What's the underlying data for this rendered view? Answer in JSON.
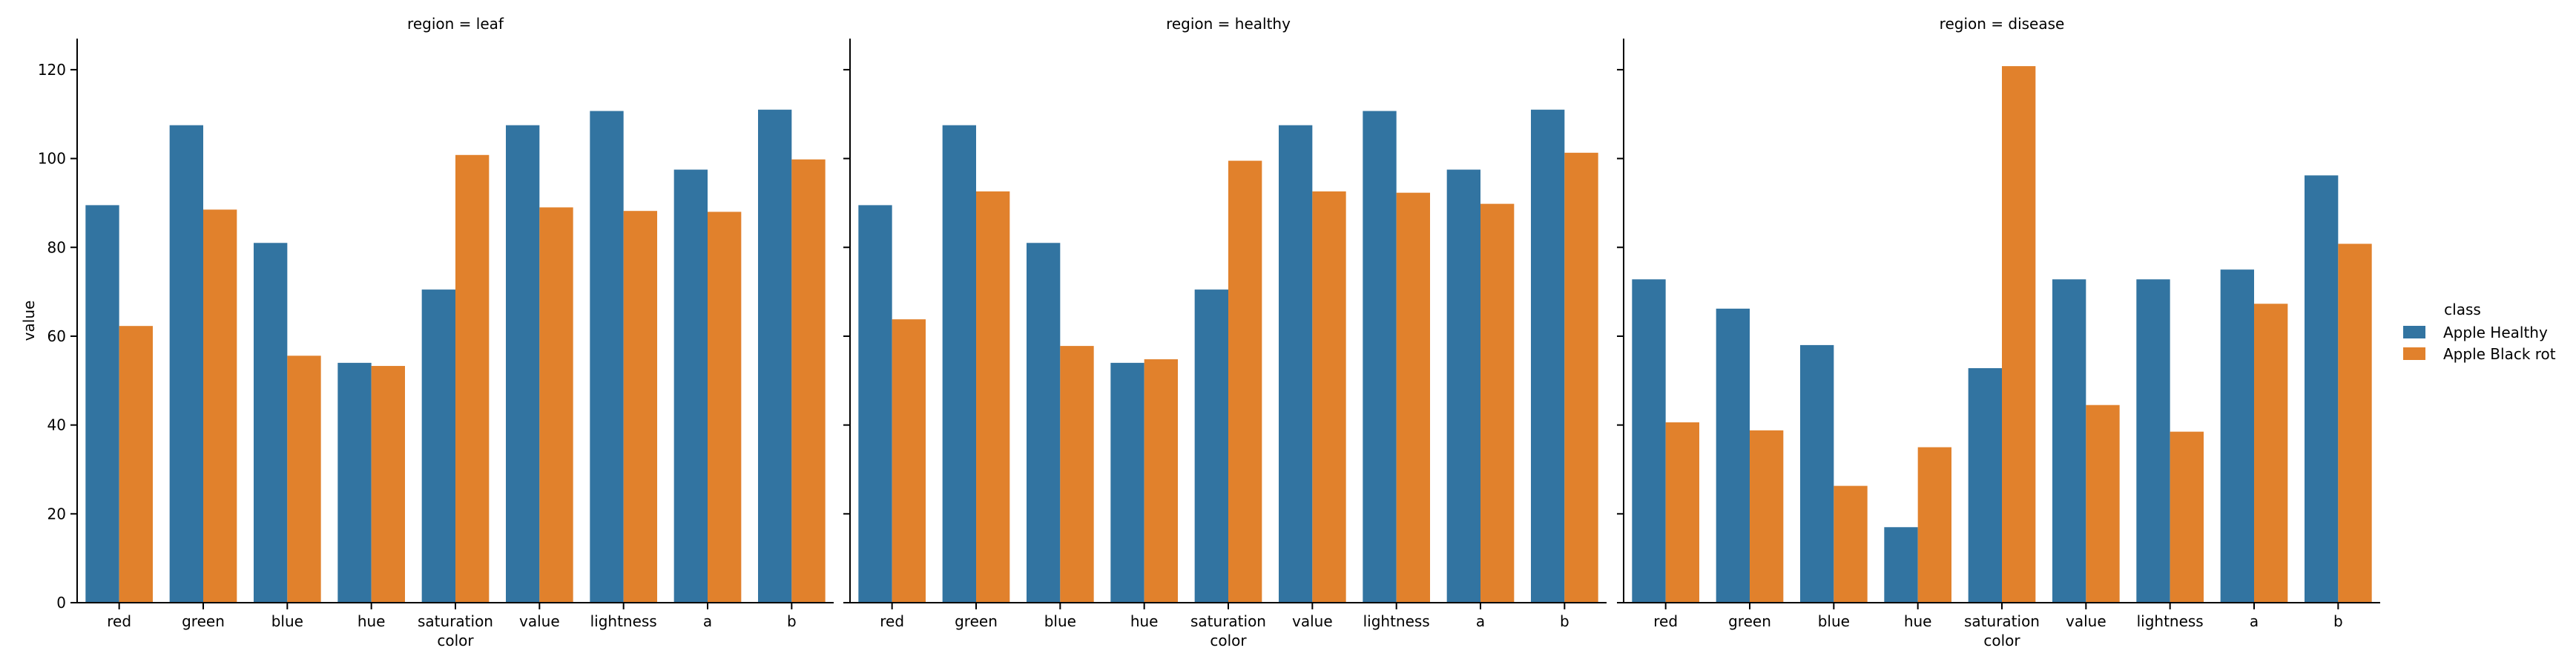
{
  "chart_data": {
    "type": "bar",
    "categories": [
      "red",
      "green",
      "blue",
      "hue",
      "saturation",
      "value",
      "lightness",
      "a",
      "b"
    ],
    "xlabel": "color",
    "ylabel": "value",
    "ylim": [
      0,
      127
    ],
    "yticks": [
      0,
      20,
      40,
      60,
      80,
      100,
      120
    ],
    "grid": false,
    "legend": {
      "title": "class",
      "placement": "right"
    },
    "colors": [
      "#3274a1",
      "#e1812c"
    ],
    "series_names": [
      "Apple Healthy",
      "Apple Black rot"
    ],
    "panels": [
      {
        "title": "region = leaf",
        "series": [
          {
            "name": "Apple Healthy",
            "values": [
              89.5,
              107.5,
              81,
              54,
              70.5,
              107.5,
              110.7,
              97.5,
              111
            ]
          },
          {
            "name": "Apple Black rot",
            "values": [
              62.3,
              88.5,
              55.6,
              53.3,
              100.8,
              89,
              88.2,
              88,
              99.8
            ]
          }
        ]
      },
      {
        "title": "region = healthy",
        "series": [
          {
            "name": "Apple Healthy",
            "values": [
              89.5,
              107.5,
              81,
              54,
              70.5,
              107.5,
              110.7,
              97.5,
              111
            ]
          },
          {
            "name": "Apple Black rot",
            "values": [
              63.8,
              92.6,
              57.8,
              54.8,
              99.5,
              92.6,
              92.3,
              89.8,
              101.3
            ]
          }
        ]
      },
      {
        "title": "region = disease",
        "series": [
          {
            "name": "Apple Healthy",
            "values": [
              72.8,
              66.2,
              58,
              17,
              52.8,
              72.8,
              72.8,
              75,
              96.2
            ]
          },
          {
            "name": "Apple Black rot",
            "values": [
              40.6,
              38.8,
              26.3,
              35,
              120.8,
              44.5,
              38.5,
              67.3,
              80.8
            ]
          }
        ]
      }
    ]
  }
}
